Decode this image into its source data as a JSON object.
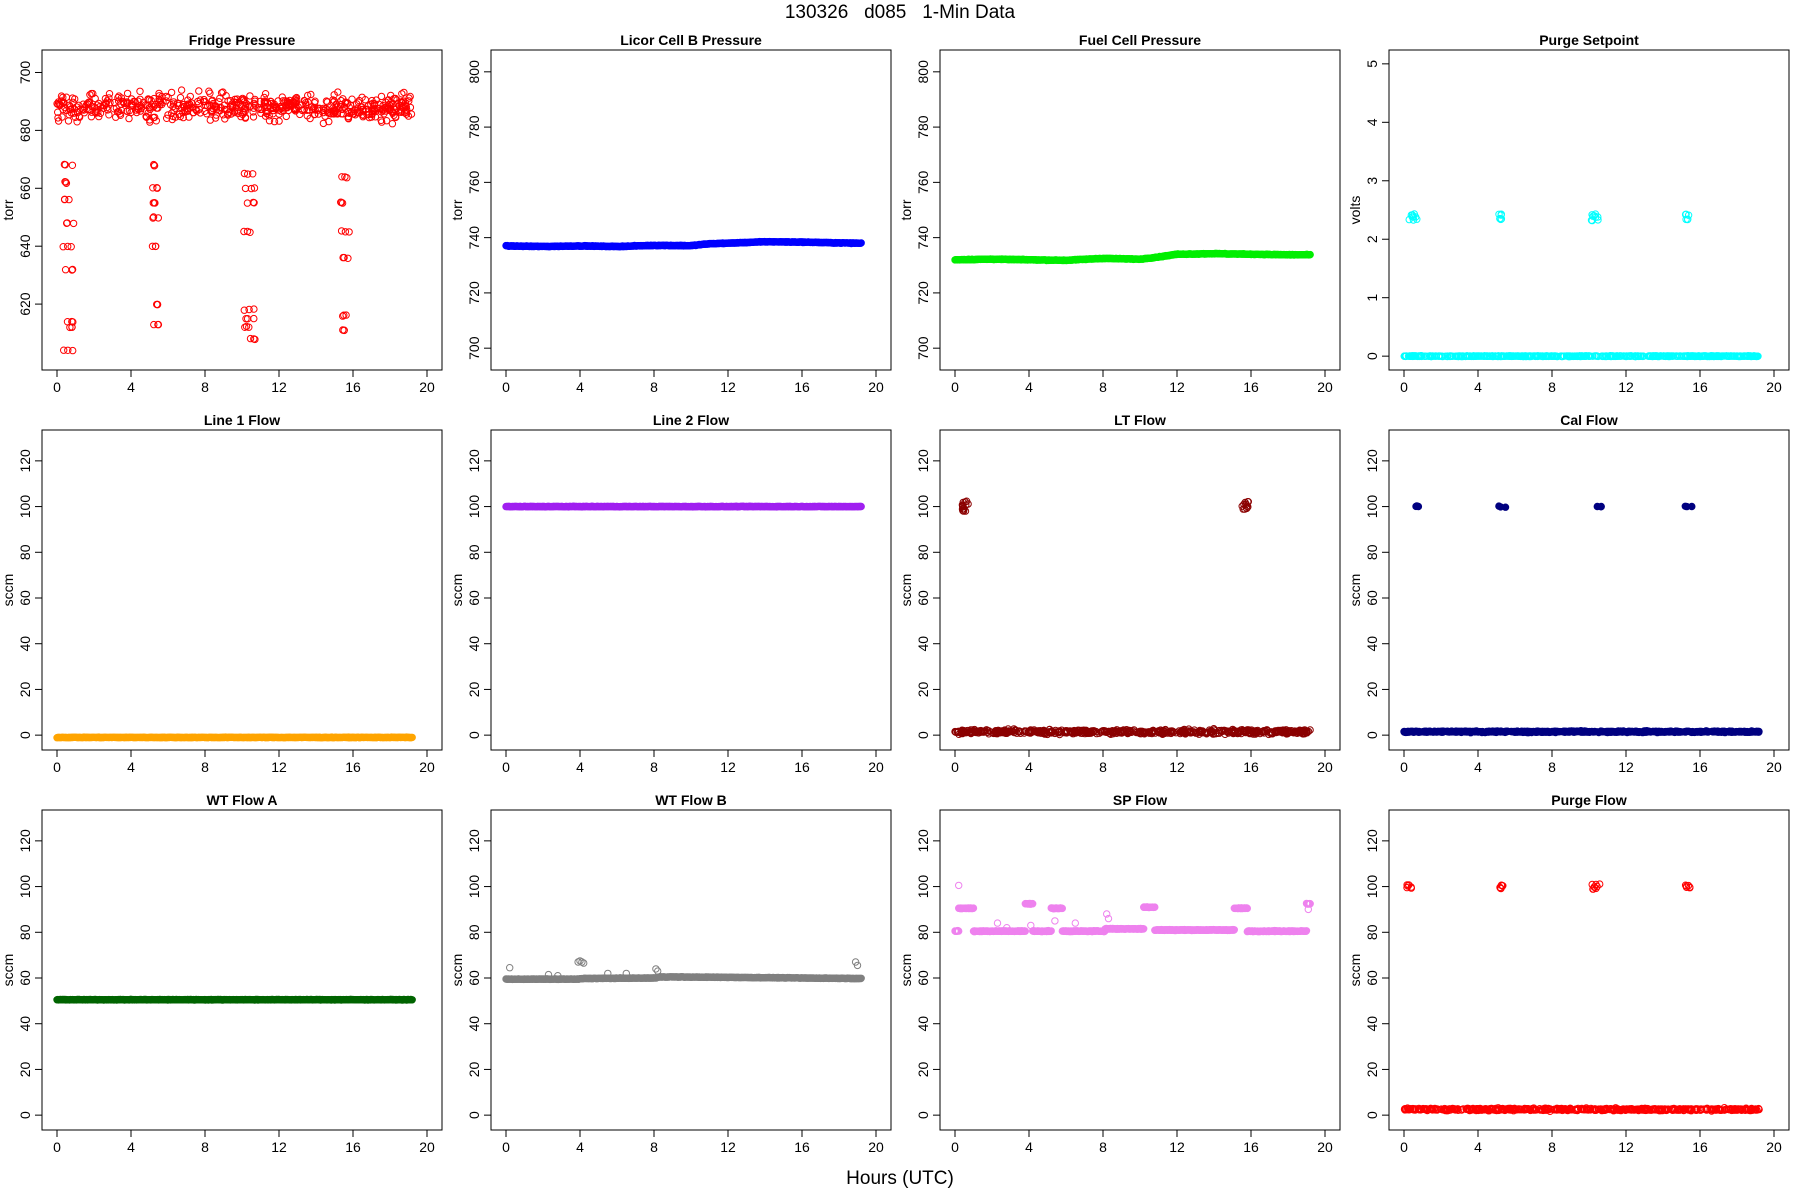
{
  "title": "130326   d085   1-Min Data",
  "x_axis_label": "Hours (UTC)",
  "chart_data": [
    {
      "type": "scatter",
      "title": "Fridge Pressure",
      "ylabel": "torr",
      "xlim": [
        0,
        20
      ],
      "ylim": [
        600,
        705
      ],
      "xticks": [
        0,
        4,
        8,
        12,
        16,
        20
      ],
      "yticks": [
        620,
        640,
        660,
        680,
        700
      ],
      "color": "#ff0000",
      "marker": "open-circle",
      "baseline": {
        "x_range": [
          0,
          19.2
        ],
        "y_mean": 688,
        "y_spread": 7
      },
      "excursions": [
        {
          "x_range": [
            0.3,
            0.9
          ],
          "y_values": [
            604,
            612,
            614,
            632,
            640,
            648,
            656,
            662,
            668
          ]
        },
        {
          "x_range": [
            5.1,
            5.5
          ],
          "y_values": [
            613,
            620,
            640,
            650,
            655,
            660,
            668
          ]
        },
        {
          "x_range": [
            10.1,
            10.7
          ],
          "y_values": [
            608,
            612,
            615,
            618,
            645,
            655,
            660,
            665
          ]
        },
        {
          "x_range": [
            15.3,
            15.8
          ],
          "y_values": [
            611,
            616,
            636,
            645,
            655,
            664
          ]
        }
      ]
    },
    {
      "type": "scatter",
      "title": "Licor Cell B Pressure",
      "ylabel": "torr",
      "xlim": [
        0,
        20
      ],
      "ylim": [
        695,
        805
      ],
      "xticks": [
        0,
        4,
        8,
        12,
        16,
        20
      ],
      "yticks": [
        700,
        720,
        740,
        760,
        780,
        800
      ],
      "color": "#0000ff",
      "marker": "filled-circle",
      "series": [
        {
          "x": [
            0,
            2,
            4,
            6,
            8,
            10,
            11,
            12,
            14,
            16,
            18,
            19.2
          ],
          "y": [
            737,
            736.8,
            737,
            736.8,
            737.2,
            737.1,
            737.8,
            738,
            738.5,
            738.4,
            738.1,
            738
          ]
        }
      ]
    },
    {
      "type": "scatter",
      "title": "Fuel Cell Pressure",
      "ylabel": "torr",
      "xlim": [
        0,
        20
      ],
      "ylim": [
        695,
        805
      ],
      "xticks": [
        0,
        4,
        8,
        12,
        16,
        20
      ],
      "yticks": [
        700,
        720,
        740,
        760,
        780,
        800
      ],
      "color": "#00ee00",
      "marker": "filled-circle",
      "series": [
        {
          "x": [
            0,
            2,
            4,
            6,
            8,
            10,
            11,
            12,
            14,
            16,
            18,
            19.2
          ],
          "y": [
            732,
            732.2,
            732,
            731.8,
            732.5,
            732.2,
            733,
            734,
            734.2,
            734,
            733.8,
            733.8
          ]
        }
      ]
    },
    {
      "type": "scatter",
      "title": "Purge Setpoint",
      "ylabel": "volts",
      "xlim": [
        0,
        20
      ],
      "ylim": [
        -0.1,
        5.1
      ],
      "xticks": [
        0,
        4,
        8,
        12,
        16,
        20
      ],
      "yticks": [
        0,
        1,
        2,
        3,
        4,
        5
      ],
      "color": "#00ffff",
      "marker": "open-circle",
      "baseline": {
        "x_range": [
          0,
          19.2
        ],
        "y_mean": 0,
        "y_spread": 0.01
      },
      "excursions": [
        {
          "x_range": [
            0.1,
            0.7
          ],
          "y_values": [
            2.33,
            2.38,
            2.42
          ]
        },
        {
          "x_range": [
            5.1,
            5.3
          ],
          "y_values": [
            2.35,
            2.42
          ]
        },
        {
          "x_range": [
            10.1,
            10.5
          ],
          "y_values": [
            2.32,
            2.38,
            2.42
          ]
        },
        {
          "x_range": [
            15.2,
            15.4
          ],
          "y_values": [
            2.34,
            2.42
          ]
        }
      ]
    },
    {
      "type": "scatter",
      "title": "Line 1 Flow",
      "ylabel": "sccm",
      "xlim": [
        0,
        20
      ],
      "ylim": [
        -3,
        130
      ],
      "xticks": [
        0,
        4,
        8,
        12,
        16,
        20
      ],
      "yticks": [
        0,
        20,
        40,
        60,
        80,
        100,
        120
      ],
      "color": "#ffa500",
      "marker": "filled-circle",
      "series": [
        {
          "x": [
            0,
            19.2
          ],
          "y": [
            -1,
            -1
          ]
        }
      ]
    },
    {
      "type": "scatter",
      "title": "Line 2 Flow",
      "ylabel": "sccm",
      "xlim": [
        0,
        20
      ],
      "ylim": [
        -3,
        130
      ],
      "xticks": [
        0,
        4,
        8,
        12,
        16,
        20
      ],
      "yticks": [
        0,
        20,
        40,
        60,
        80,
        100,
        120
      ],
      "color": "#a020f0",
      "marker": "filled-circle",
      "series": [
        {
          "x": [
            0,
            19.2
          ],
          "y": [
            100,
            100
          ]
        }
      ]
    },
    {
      "type": "scatter",
      "title": "LT Flow",
      "ylabel": "sccm",
      "xlim": [
        0,
        20
      ],
      "ylim": [
        -3,
        130
      ],
      "xticks": [
        0,
        4,
        8,
        12,
        16,
        20
      ],
      "yticks": [
        0,
        20,
        40,
        60,
        80,
        100,
        120
      ],
      "color": "#8b0000",
      "marker": "open-circle",
      "baseline": {
        "x_range": [
          0,
          19.2
        ],
        "y_mean": 1.5,
        "y_spread": 1.5
      },
      "excursions": [
        {
          "x_range": [
            0.35,
            0.75
          ],
          "y_values": [
            98,
            99,
            100,
            101,
            102
          ]
        },
        {
          "x_range": [
            15.5,
            15.9
          ],
          "y_values": [
            99,
            100,
            101,
            102
          ]
        }
      ]
    },
    {
      "type": "scatter",
      "title": "Cal Flow",
      "ylabel": "sccm",
      "xlim": [
        0,
        20
      ],
      "ylim": [
        -3,
        130
      ],
      "xticks": [
        0,
        4,
        8,
        12,
        16,
        20
      ],
      "yticks": [
        0,
        20,
        40,
        60,
        80,
        100,
        120
      ],
      "color": "#000080",
      "marker": "filled-circle",
      "baseline": {
        "x_range": [
          0,
          19.2
        ],
        "y_mean": 1.5,
        "y_spread": 0.5
      },
      "excursions": [
        {
          "x_range": [
            0.1,
            0.8
          ],
          "y_values": [
            100
          ]
        },
        {
          "x_range": [
            5.1,
            5.5
          ],
          "y_values": [
            100
          ]
        },
        {
          "x_range": [
            10.1,
            10.7
          ],
          "y_values": [
            100
          ]
        },
        {
          "x_range": [
            15.2,
            15.6
          ],
          "y_values": [
            100
          ]
        }
      ]
    },
    {
      "type": "scatter",
      "title": "WT Flow A",
      "ylabel": "sccm",
      "xlim": [
        0,
        20
      ],
      "ylim": [
        -3,
        130
      ],
      "xticks": [
        0,
        4,
        8,
        12,
        16,
        20
      ],
      "yticks": [
        0,
        20,
        40,
        60,
        80,
        100,
        120
      ],
      "color": "#006400",
      "marker": "filled-circle",
      "series": [
        {
          "x": [
            0,
            19.2
          ],
          "y": [
            50.5,
            50.5
          ]
        }
      ]
    },
    {
      "type": "scatter",
      "title": "WT Flow B",
      "ylabel": "sccm",
      "xlim": [
        0,
        20
      ],
      "ylim": [
        -3,
        130
      ],
      "xticks": [
        0,
        4,
        8,
        12,
        16,
        20
      ],
      "yticks": [
        0,
        20,
        40,
        60,
        80,
        100,
        120
      ],
      "color": "#808080",
      "marker": "filled-circle",
      "series": [
        {
          "x": [
            0,
            3.9,
            4.2,
            8.1,
            8.3,
            12,
            16,
            19.2
          ],
          "y": [
            59.5,
            59.5,
            59.8,
            60,
            60.5,
            60.3,
            60,
            59.8
          ]
        }
      ],
      "outliers": {
        "x": [
          0.2,
          2.3,
          2.8,
          3.9,
          4.0,
          4.1,
          4.2,
          5.5,
          6.5,
          8.1,
          8.2,
          18.9,
          19.0
        ],
        "y": [
          64.5,
          61.5,
          61,
          67,
          67.5,
          67,
          66.5,
          62,
          62,
          64,
          63,
          67,
          65.5
        ]
      }
    },
    {
      "type": "scatter",
      "title": "SP Flow",
      "ylabel": "sccm",
      "xlim": [
        0,
        20
      ],
      "ylim": [
        -3,
        130
      ],
      "xticks": [
        0,
        4,
        8,
        12,
        16,
        20
      ],
      "yticks": [
        0,
        20,
        40,
        60,
        80,
        100,
        120
      ],
      "color": "#ee82ee",
      "marker": "open-circle",
      "segments": [
        {
          "x": [
            0,
            0.2
          ],
          "y": 80.5
        },
        {
          "x": [
            0.2,
            1.0
          ],
          "y": 90.5
        },
        {
          "x": [
            1.0,
            3.8
          ],
          "y": 80.5
        },
        {
          "x": [
            3.8,
            4.2
          ],
          "y": 92.5
        },
        {
          "x": [
            4.2,
            5.2
          ],
          "y": 80.5
        },
        {
          "x": [
            5.2,
            5.8
          ],
          "y": 90.5
        },
        {
          "x": [
            5.8,
            8.1
          ],
          "y": 80.5
        },
        {
          "x": [
            8.1,
            10.2
          ],
          "y": 81.5
        },
        {
          "x": [
            10.2,
            10.8
          ],
          "y": 91
        },
        {
          "x": [
            10.8,
            15.1
          ],
          "y": 81
        },
        {
          "x": [
            15.1,
            15.8
          ],
          "y": 90.5
        },
        {
          "x": [
            15.8,
            19.0
          ],
          "y": 80.5
        },
        {
          "x": [
            19.0,
            19.2
          ],
          "y": 92.5
        }
      ],
      "outliers": {
        "x": [
          0.2,
          2.3,
          2.8,
          4.1,
          5.4,
          6.5,
          8.2,
          8.3,
          19.1
        ],
        "y": [
          100.5,
          84,
          82,
          83,
          85,
          84,
          88,
          86,
          90
        ]
      }
    },
    {
      "type": "scatter",
      "title": "Purge Flow",
      "ylabel": "sccm",
      "xlim": [
        0,
        20
      ],
      "ylim": [
        -3,
        130
      ],
      "xticks": [
        0,
        4,
        8,
        12,
        16,
        20
      ],
      "yticks": [
        0,
        20,
        40,
        60,
        80,
        100,
        120
      ],
      "color": "#ff0000",
      "marker": "open-circle",
      "baseline": {
        "x_range": [
          0,
          19.2
        ],
        "y_mean": 2.5,
        "y_spread": 0.8
      },
      "excursions": [
        {
          "x_range": [
            0.1,
            0.7
          ],
          "y_values": [
            99.5,
            100.5
          ]
        },
        {
          "x_range": [
            5.1,
            5.4
          ],
          "y_values": [
            99.5,
            100.5
          ]
        },
        {
          "x_range": [
            10.1,
            10.6
          ],
          "y_values": [
            99,
            100,
            101
          ]
        },
        {
          "x_range": [
            15.2,
            15.5
          ],
          "y_values": [
            99.5,
            100.5
          ]
        }
      ]
    }
  ]
}
